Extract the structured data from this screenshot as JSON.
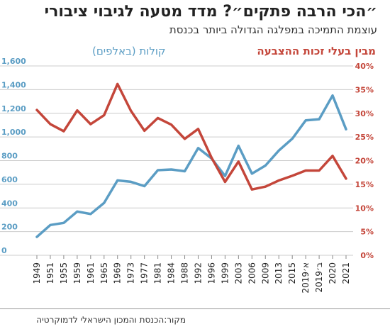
{
  "header": {
    "title": "״הכי הרבה פתקים״? מדד מטעה לגיבוי ציבורי",
    "subtitle": "עוצמת התמיכה במפלגה הגדולה ביותר בכנסת"
  },
  "source": "מקור:הכנסת והמכון הישראלי לדמוקרטיה",
  "colors": {
    "votes": "#5b9dc4",
    "percent": "#c4463a",
    "grid": "#cccccc",
    "text": "#222222"
  },
  "chart_data": {
    "type": "line",
    "categories": [
      "1949",
      "1951",
      "1955",
      "1959",
      "1961",
      "1965",
      "1969",
      "1973",
      "1977",
      "1981",
      "1984",
      "1988",
      "1992",
      "1996",
      "1999",
      "2003",
      "2006",
      "2009",
      "2013",
      "2015",
      "2019א׳",
      "2019ב׳",
      "2020",
      "2021"
    ],
    "y_left": {
      "label": "קולות (באלפים)",
      "range": [
        0,
        1600
      ],
      "ticks": [
        "0",
        "200",
        "400",
        "600",
        "800",
        "1,000",
        "1,200",
        "1,400",
        "1,600"
      ],
      "tick_values": [
        0,
        200,
        400,
        600,
        800,
        1000,
        1200,
        1400,
        1600
      ]
    },
    "y_right": {
      "label": "מבין בעלי זכות ההצבעה",
      "range": [
        0,
        40
      ],
      "ticks": [
        "0%",
        "5%",
        "10%",
        "15%",
        "20%",
        "25%",
        "30%",
        "35%",
        "40%"
      ],
      "tick_values": [
        0,
        5,
        10,
        15,
        20,
        25,
        30,
        35,
        40
      ]
    },
    "series": [
      {
        "axis": "left",
        "color_key": "votes",
        "values": [
          155,
          256,
          274,
          370,
          349,
          443,
          633,
          621,
          584,
          719,
          725,
          710,
          906,
          818,
          670,
          925,
          690,
          758,
          885,
          985,
          1140,
          1150,
          1350,
          1065
        ]
      },
      {
        "axis": "right",
        "color_key": "percent",
        "values": [
          30.7,
          27.7,
          26.2,
          30.6,
          27.7,
          29.6,
          36.2,
          30.5,
          26.3,
          29.0,
          27.6,
          24.6,
          26.7,
          20.6,
          15.5,
          19.8,
          13.9,
          14.5,
          15.8,
          16.8,
          17.9,
          17.9,
          21.0,
          16.2
        ]
      }
    ],
    "grid": "horizontal"
  }
}
